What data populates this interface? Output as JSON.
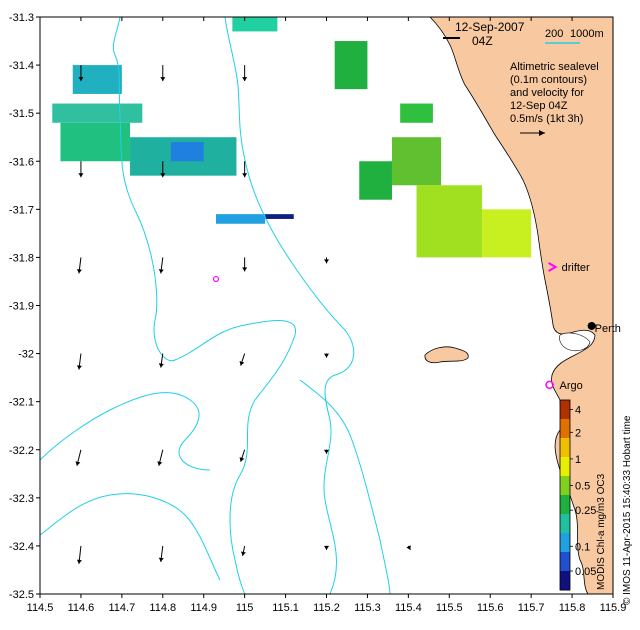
{
  "chart_data": {
    "type": "heatmap",
    "title": "MODIS Chl-a mg/m3 OC3",
    "date_label": "12-Sep-2007",
    "time_label": "04Z",
    "scale_bar": {
      "label_a": "200",
      "label_b": "1000m"
    },
    "legend_text": [
      "Altimetric sealevel",
      "(0.1m contours)",
      "and velocity for",
      "12-Sep 04Z",
      "0.5m/s (1kt 3h)"
    ],
    "xlim": [
      114.5,
      115.9
    ],
    "ylim": [
      -32.5,
      -31.3
    ],
    "x_ticks": [
      "114.5",
      "114.6",
      "114.7",
      "114.8",
      "114.9",
      "115",
      "115.1",
      "115.2",
      "115.3",
      "115.4",
      "115.5",
      "115.6",
      "115.7",
      "115.8",
      "115.9"
    ],
    "y_ticks": [
      "-31.3",
      "-31.4",
      "-31.5",
      "-31.6",
      "-31.7",
      "-31.8",
      "-31.9",
      "-32",
      "-32.1",
      "-32.2",
      "-32.3",
      "-32.4",
      "-32.5"
    ],
    "colorbar": {
      "label": "MODIS Chl-a mg/m3 OC3",
      "ticks": [
        "4",
        "2",
        "1",
        "0.5",
        "0.25",
        "0.1",
        "0.05"
      ],
      "colors": [
        "#b03000",
        "#e07000",
        "#f0c000",
        "#e8f000",
        "#80d020",
        "#20b040",
        "#20c0a0",
        "#20a0e0",
        "#2050d0",
        "#101080"
      ]
    },
    "markers": [
      {
        "label": "drifter",
        "lon": 115.75,
        "lat": -31.82
      },
      {
        "label": "Argo",
        "lon": 115.745,
        "lat": -32.065
      },
      {
        "label": "",
        "lon": 114.93,
        "lat": -31.845
      }
    ],
    "city": {
      "label": "Perth",
      "lon": 115.86,
      "lat": -31.955
    },
    "credit": "© IMOS 11-Apr-2015 15:40:33 Hobart time",
    "velocity_arrows": [
      {
        "lon": 114.6,
        "lat": -31.4,
        "u": 0.0,
        "v": -0.4
      },
      {
        "lon": 114.8,
        "lat": -31.4,
        "u": 0.0,
        "v": -0.4
      },
      {
        "lon": 115.0,
        "lat": -31.4,
        "u": 0.0,
        "v": -0.4
      },
      {
        "lon": 114.6,
        "lat": -31.6,
        "u": 0.0,
        "v": -0.4
      },
      {
        "lon": 114.8,
        "lat": -31.6,
        "u": 0.0,
        "v": -0.4
      },
      {
        "lon": 115.0,
        "lat": -31.6,
        "u": 0.0,
        "v": -0.4
      },
      {
        "lon": 114.6,
        "lat": -31.8,
        "u": -0.05,
        "v": -0.4
      },
      {
        "lon": 114.8,
        "lat": -31.8,
        "u": -0.05,
        "v": -0.4
      },
      {
        "lon": 115.0,
        "lat": -31.8,
        "u": 0.0,
        "v": -0.35
      },
      {
        "lon": 115.2,
        "lat": -31.8,
        "u": 0.0,
        "v": -0.15
      },
      {
        "lon": 114.6,
        "lat": -32.0,
        "u": -0.05,
        "v": -0.4
      },
      {
        "lon": 114.8,
        "lat": -32.0,
        "u": -0.05,
        "v": -0.35
      },
      {
        "lon": 115.0,
        "lat": -32.0,
        "u": -0.1,
        "v": -0.3
      },
      {
        "lon": 115.2,
        "lat": -32.0,
        "u": 0.0,
        "v": -0.1
      },
      {
        "lon": 114.6,
        "lat": -32.2,
        "u": -0.1,
        "v": -0.4
      },
      {
        "lon": 114.8,
        "lat": -32.2,
        "u": -0.1,
        "v": -0.4
      },
      {
        "lon": 115.0,
        "lat": -32.2,
        "u": -0.1,
        "v": -0.3
      },
      {
        "lon": 115.2,
        "lat": -32.2,
        "u": 0.0,
        "v": -0.1
      },
      {
        "lon": 114.6,
        "lat": -32.4,
        "u": -0.05,
        "v": -0.45
      },
      {
        "lon": 114.8,
        "lat": -32.4,
        "u": -0.05,
        "v": -0.4
      },
      {
        "lon": 115.0,
        "lat": -32.4,
        "u": -0.05,
        "v": -0.25
      },
      {
        "lon": 115.2,
        "lat": -32.4,
        "u": 0.0,
        "v": -0.1
      },
      {
        "lon": 115.4,
        "lat": -32.4,
        "u": 0.05,
        "v": -0.1
      }
    ],
    "chl_patches": [
      {
        "lon": [
          114.72,
          114.98
        ],
        "lat": [
          -31.55,
          -31.63
        ],
        "color": "#20b0a0"
      },
      {
        "lon": [
          114.55,
          114.72
        ],
        "lat": [
          -31.52,
          -31.6
        ],
        "color": "#20c080"
      },
      {
        "lon": [
          114.58,
          114.7
        ],
        "lat": [
          -31.4,
          -31.46
        ],
        "color": "#20b0c0"
      },
      {
        "lon": [
          114.53,
          114.75
        ],
        "lat": [
          -31.48,
          -31.52
        ],
        "color": "#30c0a0"
      },
      {
        "lon": [
          114.82,
          114.9
        ],
        "lat": [
          -31.56,
          -31.6
        ],
        "color": "#2080e0"
      },
      {
        "lon": [
          114.97,
          115.08
        ],
        "lat": [
          -31.3,
          -31.33
        ],
        "color": "#20d0a0"
      },
      {
        "lon": [
          114.93,
          115.05
        ],
        "lat": [
          -31.71,
          -31.73
        ],
        "color": "#20a0e0"
      },
      {
        "lon": [
          115.05,
          115.12
        ],
        "lat": [
          -31.71,
          -31.72
        ],
        "color": "#102080"
      },
      {
        "lon": [
          115.22,
          115.3
        ],
        "lat": [
          -31.35,
          -31.45
        ],
        "color": "#20b040"
      },
      {
        "lon": [
          115.28,
          115.36
        ],
        "lat": [
          -31.6,
          -31.68
        ],
        "color": "#20b040"
      },
      {
        "lon": [
          115.36,
          115.48
        ],
        "lat": [
          -31.55,
          -31.65
        ],
        "color": "#60c030"
      },
      {
        "lon": [
          115.42,
          115.58
        ],
        "lat": [
          -31.65,
          -31.8
        ],
        "color": "#a0e020"
      },
      {
        "lon": [
          115.58,
          115.7
        ],
        "lat": [
          -31.7,
          -31.8
        ],
        "color": "#c8f020"
      },
      {
        "lon": [
          115.38,
          115.46
        ],
        "lat": [
          -31.48,
          -31.52
        ],
        "color": "#30c040"
      }
    ]
  }
}
